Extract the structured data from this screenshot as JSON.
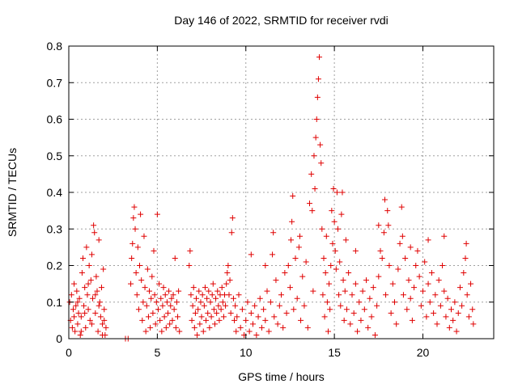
{
  "chart_data": {
    "type": "scatter",
    "title": "Day 146 of 2022, SRMTID for receiver rvdi",
    "xlabel": "GPS time / hours",
    "ylabel": "SRMTID / TECUs",
    "xlim": [
      0,
      24
    ],
    "ylim": [
      0,
      0.8
    ],
    "xticks": [
      0,
      5,
      10,
      15,
      20
    ],
    "yticks": [
      0,
      0.1,
      0.2,
      0.3,
      0.4,
      0.5,
      0.6,
      0.7,
      0.8
    ],
    "ytick_labels": [
      "0",
      "0.1",
      "0.2",
      "0.3",
      "0.4",
      "0.5",
      "0.6",
      "0.7",
      "0.8"
    ],
    "grid": true,
    "marker": "+",
    "series_color": "#e00000",
    "points": [
      [
        0.05,
        0.1
      ],
      [
        0.1,
        0.05
      ],
      [
        0.15,
        0.12
      ],
      [
        0.2,
        0.03
      ],
      [
        0.25,
        0.08
      ],
      [
        0.3,
        0.15
      ],
      [
        0.35,
        0.02
      ],
      [
        0.4,
        0.09
      ],
      [
        0.45,
        0.13
      ],
      [
        0.5,
        0.04
      ],
      [
        0.55,
        0.07
      ],
      [
        0.6,
        0.11
      ],
      [
        0.65,
        0.01
      ],
      [
        0.7,
        0.06
      ],
      [
        0.75,
        0.18
      ],
      [
        0.8,
        0.22
      ],
      [
        0.85,
        0.09
      ],
      [
        0.9,
        0.14
      ],
      [
        0.95,
        0.03
      ],
      [
        1.0,
        0.25
      ],
      [
        1.05,
        0.12
      ],
      [
        1.1,
        0.08
      ],
      [
        1.15,
        0.2
      ],
      [
        1.2,
        0.05
      ],
      [
        1.25,
        0.16
      ],
      [
        1.3,
        0.23
      ],
      [
        1.35,
        0.11
      ],
      [
        1.4,
        0.31
      ],
      [
        1.45,
        0.29
      ],
      [
        1.5,
        0.07
      ],
      [
        1.55,
        0.17
      ],
      [
        1.6,
        0.13
      ],
      [
        1.65,
        0.02
      ],
      [
        1.7,
        0.27
      ],
      [
        1.75,
        0.1
      ],
      [
        1.8,
        0.06
      ],
      [
        1.85,
        0.14
      ],
      [
        1.9,
        0.04
      ],
      [
        1.95,
        0.19
      ],
      [
        2.0,
        0.08
      ],
      [
        2.05,
        0.01
      ],
      [
        2.1,
        0.03
      ],
      [
        0.3,
        0.06
      ],
      [
        0.5,
        0.1
      ],
      [
        0.7,
        0.02
      ],
      [
        0.9,
        0.07
      ],
      [
        1.1,
        0.15
      ],
      [
        1.3,
        0.04
      ],
      [
        1.5,
        0.12
      ],
      [
        1.7,
        0.09
      ],
      [
        1.9,
        0.01
      ],
      [
        2.0,
        0.05
      ],
      [
        3.2,
        0.0
      ],
      [
        3.35,
        0.0
      ],
      [
        3.5,
        0.15
      ],
      [
        3.55,
        0.22
      ],
      [
        3.6,
        0.26
      ],
      [
        3.65,
        0.33
      ],
      [
        3.7,
        0.36
      ],
      [
        3.75,
        0.3
      ],
      [
        3.8,
        0.18
      ],
      [
        3.85,
        0.12
      ],
      [
        3.9,
        0.25
      ],
      [
        3.95,
        0.08
      ],
      [
        4.0,
        0.2
      ],
      [
        4.05,
        0.34
      ],
      [
        4.1,
        0.16
      ],
      [
        4.15,
        0.05
      ],
      [
        4.2,
        0.1
      ],
      [
        4.25,
        0.28
      ],
      [
        4.3,
        0.14
      ],
      [
        4.35,
        0.02
      ],
      [
        4.4,
        0.09
      ],
      [
        4.45,
        0.19
      ],
      [
        4.5,
        0.06
      ],
      [
        4.55,
        0.13
      ],
      [
        4.6,
        0.03
      ],
      [
        4.65,
        0.11
      ],
      [
        4.7,
        0.17
      ],
      [
        4.75,
        0.07
      ],
      [
        4.8,
        0.24
      ],
      [
        4.85,
        0.12
      ],
      [
        4.9,
        0.04
      ],
      [
        4.95,
        0.1
      ],
      [
        5.0,
        0.34
      ],
      [
        5.05,
        0.08
      ],
      [
        5.1,
        0.15
      ],
      [
        5.15,
        0.05
      ],
      [
        5.2,
        0.11
      ],
      [
        5.25,
        0.02
      ],
      [
        5.3,
        0.09
      ],
      [
        5.35,
        0.14
      ],
      [
        5.4,
        0.06
      ],
      [
        5.45,
        0.12
      ],
      [
        5.5,
        0.03
      ],
      [
        5.55,
        0.1
      ],
      [
        5.6,
        0.07
      ],
      [
        5.65,
        0.13
      ],
      [
        5.7,
        0.04
      ],
      [
        5.75,
        0.09
      ],
      [
        5.8,
        0.11
      ],
      [
        5.85,
        0.05
      ],
      [
        5.9,
        0.12
      ],
      [
        5.95,
        0.08
      ],
      [
        6.0,
        0.22
      ],
      [
        6.05,
        0.03
      ],
      [
        6.1,
        0.1
      ],
      [
        6.15,
        0.06
      ],
      [
        6.2,
        0.13
      ],
      [
        6.25,
        0.02
      ],
      [
        6.8,
        0.2
      ],
      [
        6.85,
        0.24
      ],
      [
        6.9,
        0.12
      ],
      [
        6.95,
        0.05
      ],
      [
        7.0,
        0.09
      ],
      [
        7.05,
        0.14
      ],
      [
        7.1,
        0.03
      ],
      [
        7.15,
        0.07
      ],
      [
        7.2,
        0.11
      ],
      [
        7.25,
        0.01
      ],
      [
        7.3,
        0.08
      ],
      [
        7.35,
        0.13
      ],
      [
        7.4,
        0.04
      ],
      [
        7.45,
        0.1
      ],
      [
        7.5,
        0.06
      ],
      [
        7.55,
        0.12
      ],
      [
        7.6,
        0.02
      ],
      [
        7.65,
        0.09
      ],
      [
        7.7,
        0.14
      ],
      [
        7.75,
        0.05
      ],
      [
        7.8,
        0.11
      ],
      [
        7.85,
        0.07
      ],
      [
        7.9,
        0.13
      ],
      [
        7.95,
        0.03
      ],
      [
        8.0,
        0.1
      ],
      [
        8.05,
        0.06
      ],
      [
        8.1,
        0.12
      ],
      [
        8.15,
        0.15
      ],
      [
        8.2,
        0.08
      ],
      [
        8.25,
        0.04
      ],
      [
        8.3,
        0.11
      ],
      [
        8.35,
        0.07
      ],
      [
        8.4,
        0.13
      ],
      [
        8.45,
        0.09
      ],
      [
        8.5,
        0.05
      ],
      [
        8.55,
        0.12
      ],
      [
        8.6,
        0.08
      ],
      [
        8.65,
        0.14
      ],
      [
        8.7,
        0.1
      ],
      [
        8.75,
        0.06
      ],
      [
        8.8,
        0.12
      ],
      [
        8.85,
        0.09
      ],
      [
        8.9,
        0.15
      ],
      [
        8.95,
        0.18
      ],
      [
        9.0,
        0.2
      ],
      [
        9.05,
        0.12
      ],
      [
        9.1,
        0.16
      ],
      [
        9.15,
        0.07
      ],
      [
        9.2,
        0.29
      ],
      [
        9.25,
        0.33
      ],
      [
        9.3,
        0.11
      ],
      [
        9.35,
        0.05
      ],
      [
        9.4,
        0.09
      ],
      [
        9.45,
        0.02
      ],
      [
        9.5,
        0.06
      ],
      [
        9.6,
        0.12
      ],
      [
        9.7,
        0.03
      ],
      [
        9.8,
        0.08
      ],
      [
        9.9,
        0.01
      ],
      [
        10.0,
        0.05
      ],
      [
        10.1,
        0.1
      ],
      [
        10.2,
        0.02
      ],
      [
        10.3,
        0.07
      ],
      [
        10.4,
        0.04
      ],
      [
        10.5,
        0.09
      ],
      [
        10.6,
        0.01
      ],
      [
        10.7,
        0.06
      ],
      [
        10.8,
        0.11
      ],
      [
        10.9,
        0.03
      ],
      [
        11.0,
        0.08
      ],
      [
        11.1,
        0.05
      ],
      [
        11.2,
        0.13
      ],
      [
        11.3,
        0.02
      ],
      [
        11.4,
        0.1
      ],
      [
        11.5,
        0.23
      ],
      [
        11.55,
        0.29
      ],
      [
        11.6,
        0.06
      ],
      [
        11.7,
        0.16
      ],
      [
        11.8,
        0.04
      ],
      [
        11.9,
        0.09
      ],
      [
        12.0,
        0.12
      ],
      [
        12.1,
        0.03
      ],
      [
        12.2,
        0.18
      ],
      [
        12.3,
        0.07
      ],
      [
        12.4,
        0.2
      ],
      [
        12.5,
        0.14
      ],
      [
        12.55,
        0.27
      ],
      [
        12.6,
        0.32
      ],
      [
        12.65,
        0.39
      ],
      [
        12.7,
        0.08
      ],
      [
        12.8,
        0.22
      ],
      [
        12.9,
        0.11
      ],
      [
        13.0,
        0.25
      ],
      [
        13.05,
        0.28
      ],
      [
        13.1,
        0.05
      ],
      [
        13.2,
        0.17
      ],
      [
        13.3,
        0.09
      ],
      [
        13.4,
        0.21
      ],
      [
        13.5,
        0.03
      ],
      [
        13.6,
        0.37
      ],
      [
        13.7,
        0.45
      ],
      [
        13.75,
        0.35
      ],
      [
        13.8,
        0.13
      ],
      [
        13.85,
        0.5
      ],
      [
        13.9,
        0.41
      ],
      [
        13.95,
        0.55
      ],
      [
        14.0,
        0.6
      ],
      [
        14.05,
        0.66
      ],
      [
        14.1,
        0.71
      ],
      [
        14.15,
        0.77
      ],
      [
        14.2,
        0.53
      ],
      [
        14.25,
        0.48
      ],
      [
        14.3,
        0.3
      ],
      [
        14.35,
        0.12
      ],
      [
        14.4,
        0.22
      ],
      [
        14.45,
        0.06
      ],
      [
        14.5,
        0.18
      ],
      [
        14.55,
        0.28
      ],
      [
        14.6,
        0.1
      ],
      [
        14.65,
        0.02
      ],
      [
        14.7,
        0.15
      ],
      [
        14.75,
        0.08
      ],
      [
        14.8,
        0.2
      ],
      [
        14.85,
        0.35
      ],
      [
        14.9,
        0.26
      ],
      [
        14.95,
        0.41
      ],
      [
        15.0,
        0.32
      ],
      [
        15.05,
        0.24
      ],
      [
        15.1,
        0.19
      ],
      [
        15.15,
        0.4
      ],
      [
        15.2,
        0.3
      ],
      [
        15.25,
        0.12
      ],
      [
        15.3,
        0.21
      ],
      [
        15.35,
        0.09
      ],
      [
        15.4,
        0.34
      ],
      [
        15.45,
        0.4
      ],
      [
        15.5,
        0.16
      ],
      [
        15.55,
        0.05
      ],
      [
        15.6,
        0.13
      ],
      [
        15.65,
        0.27
      ],
      [
        15.7,
        0.08
      ],
      [
        15.8,
        0.18
      ],
      [
        15.9,
        0.04
      ],
      [
        16.0,
        0.12
      ],
      [
        16.1,
        0.07
      ],
      [
        16.2,
        0.15
      ],
      [
        16.3,
        0.02
      ],
      [
        16.4,
        0.1
      ],
      [
        16.5,
        0.05
      ],
      [
        16.6,
        0.13
      ],
      [
        16.7,
        0.08
      ],
      [
        16.8,
        0.16
      ],
      [
        16.9,
        0.03
      ],
      [
        17.0,
        0.11
      ],
      [
        17.1,
        0.06
      ],
      [
        17.2,
        0.14
      ],
      [
        17.3,
        0.01
      ],
      [
        17.4,
        0.09
      ],
      [
        17.5,
        0.17
      ],
      [
        17.6,
        0.24
      ],
      [
        17.7,
        0.22
      ],
      [
        17.8,
        0.29
      ],
      [
        17.85,
        0.38
      ],
      [
        17.9,
        0.12
      ],
      [
        18.0,
        0.35
      ],
      [
        18.05,
        0.31
      ],
      [
        18.1,
        0.2
      ],
      [
        18.2,
        0.07
      ],
      [
        18.3,
        0.15
      ],
      [
        18.4,
        0.1
      ],
      [
        18.5,
        0.04
      ],
      [
        18.6,
        0.19
      ],
      [
        18.7,
        0.26
      ],
      [
        18.8,
        0.36
      ],
      [
        18.85,
        0.28
      ],
      [
        18.9,
        0.12
      ],
      [
        19.0,
        0.22
      ],
      [
        19.1,
        0.08
      ],
      [
        19.2,
        0.16
      ],
      [
        19.3,
        0.11
      ],
      [
        19.4,
        0.05
      ],
      [
        19.5,
        0.14
      ],
      [
        19.6,
        0.2
      ],
      [
        19.7,
        0.24
      ],
      [
        19.8,
        0.17
      ],
      [
        19.9,
        0.09
      ],
      [
        20.0,
        0.13
      ],
      [
        20.1,
        0.21
      ],
      [
        20.2,
        0.06
      ],
      [
        20.3,
        0.15
      ],
      [
        20.4,
        0.1
      ],
      [
        20.5,
        0.18
      ],
      [
        20.6,
        0.07
      ],
      [
        20.7,
        0.12
      ],
      [
        20.8,
        0.04
      ],
      [
        20.9,
        0.16
      ],
      [
        21.0,
        0.09
      ],
      [
        21.1,
        0.2
      ],
      [
        21.2,
        0.13
      ],
      [
        21.3,
        0.06
      ],
      [
        21.4,
        0.11
      ],
      [
        21.5,
        0.03
      ],
      [
        21.6,
        0.08
      ],
      [
        21.7,
        0.05
      ],
      [
        21.8,
        0.1
      ],
      [
        21.9,
        0.02
      ],
      [
        22.0,
        0.07
      ],
      [
        22.1,
        0.14
      ],
      [
        22.2,
        0.09
      ],
      [
        22.3,
        0.18
      ],
      [
        22.4,
        0.22
      ],
      [
        22.45,
        0.26
      ],
      [
        22.5,
        0.12
      ],
      [
        22.6,
        0.06
      ],
      [
        22.7,
        0.15
      ],
      [
        22.8,
        0.08
      ],
      [
        22.85,
        0.04
      ],
      [
        20.3,
        0.27
      ],
      [
        21.2,
        0.28
      ],
      [
        19.3,
        0.25
      ],
      [
        17.5,
        0.31
      ],
      [
        16.2,
        0.24
      ],
      [
        10.3,
        0.23
      ],
      [
        11.1,
        0.2
      ]
    ]
  }
}
